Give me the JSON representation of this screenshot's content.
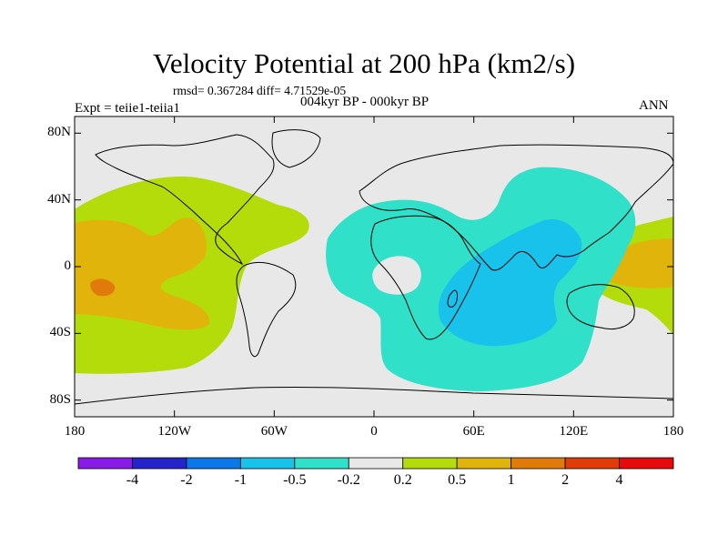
{
  "title": "Velocity Potential at 200 hPa (km2/s)",
  "stats_line": "rmsd= 0.367284  diff= 4.71529e-05",
  "experiment": "Expt = teiie1-teiia1",
  "period": "004kyr BP - 000kyr BP",
  "season": "ANN",
  "map": {
    "lon_range": [
      -180,
      180
    ],
    "lat_range": [
      -90,
      90
    ],
    "lat_ticks": [
      {
        "value": 80,
        "label": "80N"
      },
      {
        "value": 40,
        "label": "40N"
      },
      {
        "value": 0,
        "label": "0"
      },
      {
        "value": -40,
        "label": "40S"
      },
      {
        "value": -80,
        "label": "80S"
      }
    ],
    "lon_ticks": [
      {
        "value": -180,
        "label": "180"
      },
      {
        "value": -120,
        "label": "120W"
      },
      {
        "value": -60,
        "label": "60W"
      },
      {
        "value": 0,
        "label": "0"
      },
      {
        "value": 60,
        "label": "60E"
      },
      {
        "value": 120,
        "label": "120E"
      },
      {
        "value": 180,
        "label": "180"
      }
    ],
    "background_color": "#e8e8e8"
  },
  "colorbar": {
    "colors": [
      "#8a1ae6",
      "#2424c8",
      "#0a78e6",
      "#18c2ea",
      "#30e0c8",
      "#e8e8e8",
      "#b4dc0a",
      "#e0b40a",
      "#e07a0a",
      "#e03c0a",
      "#e60a0a"
    ],
    "labels": [
      "-4",
      "-2",
      "-1",
      "-0.5",
      "-0.2",
      "0.2",
      "0.5",
      "1",
      "2",
      "4"
    ]
  }
}
